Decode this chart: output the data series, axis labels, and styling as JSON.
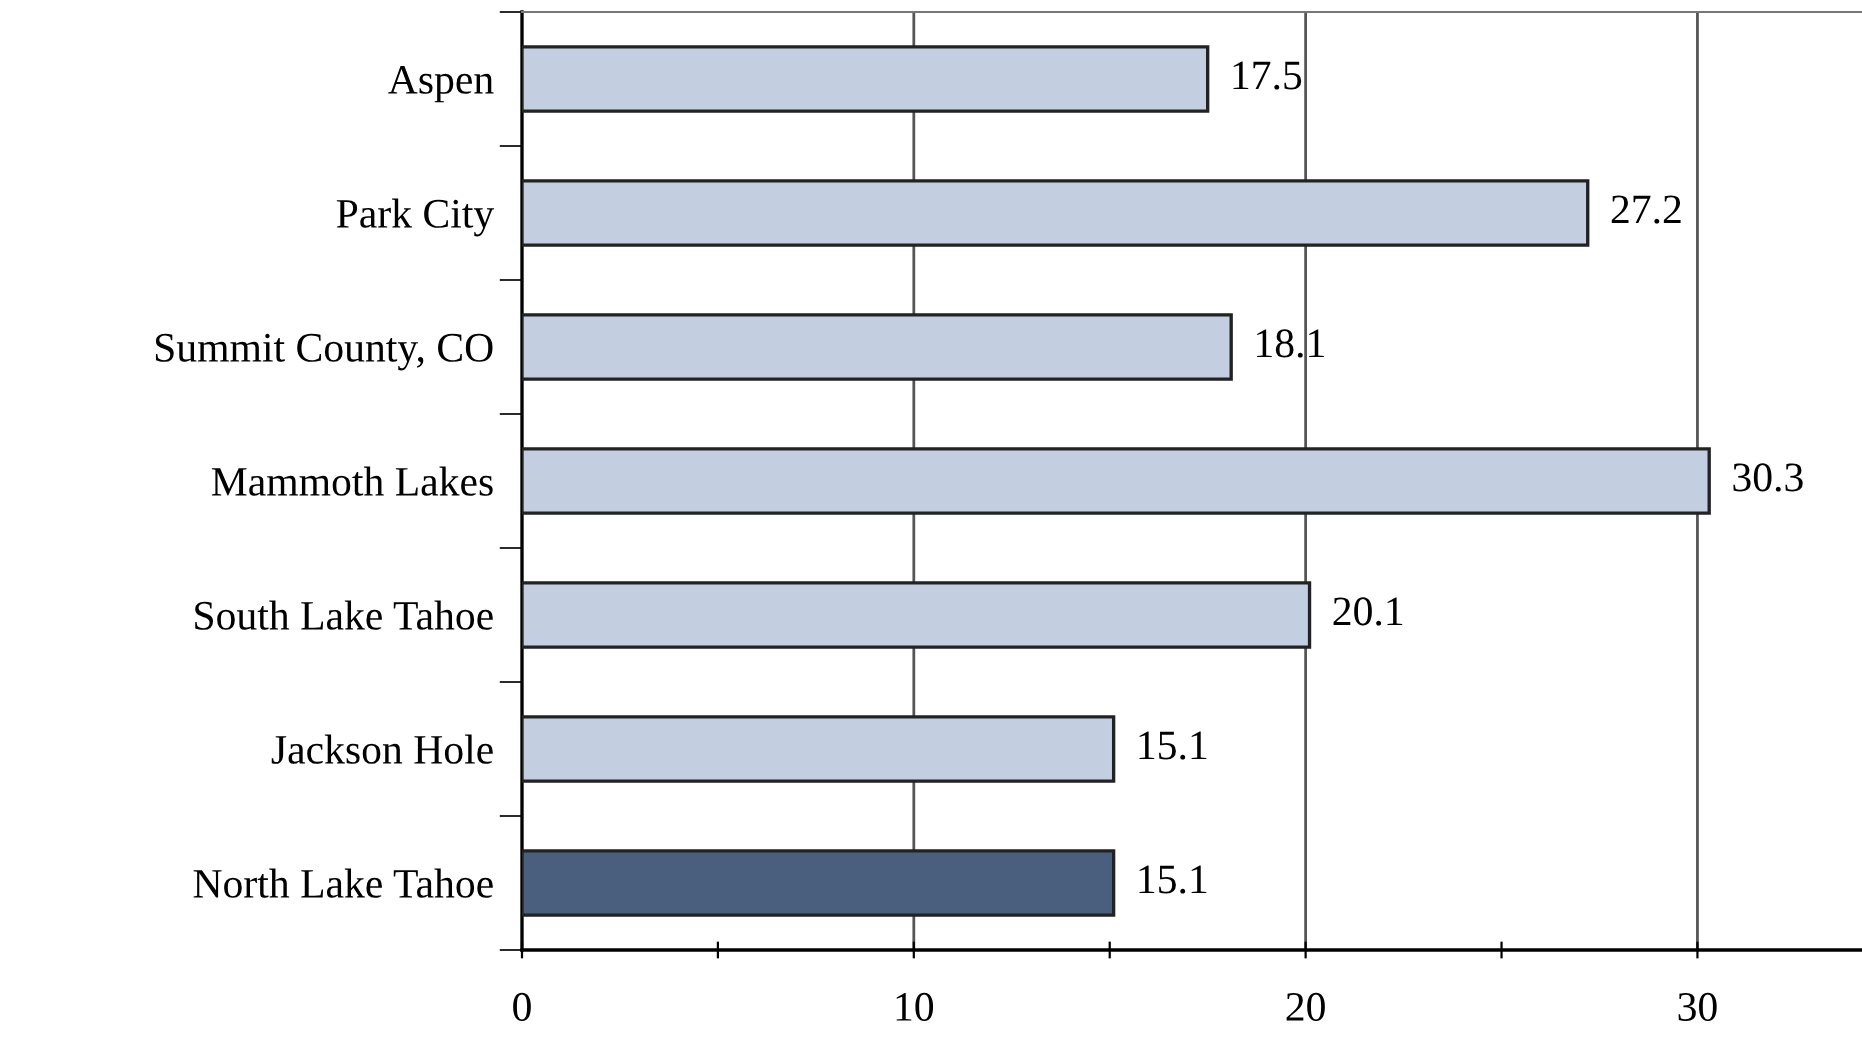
{
  "chart_data": {
    "type": "bar",
    "orientation": "horizontal",
    "categories": [
      "Aspen",
      "Park City",
      "Summit County, CO",
      "Mammoth Lakes",
      "South Lake Tahoe",
      "Jackson Hole",
      "North Lake Tahoe"
    ],
    "values": [
      17.5,
      27.2,
      18.1,
      30.3,
      20.1,
      15.1,
      15.1
    ],
    "colors": [
      "#c3cfe0",
      "#c3cfe0",
      "#c3cfe0",
      "#c3cfe0",
      "#c3cfe0",
      "#c3cfe0",
      "#4a5f7e"
    ],
    "data_labels": true,
    "grid": "x",
    "xlim": [
      0,
      34.2
    ],
    "xticks": [
      0,
      {
        "value": 5,
        "label": null
      },
      10,
      {
        "value": 15,
        "label": null
      },
      20,
      {
        "value": 25,
        "label": null
      },
      30
    ]
  }
}
